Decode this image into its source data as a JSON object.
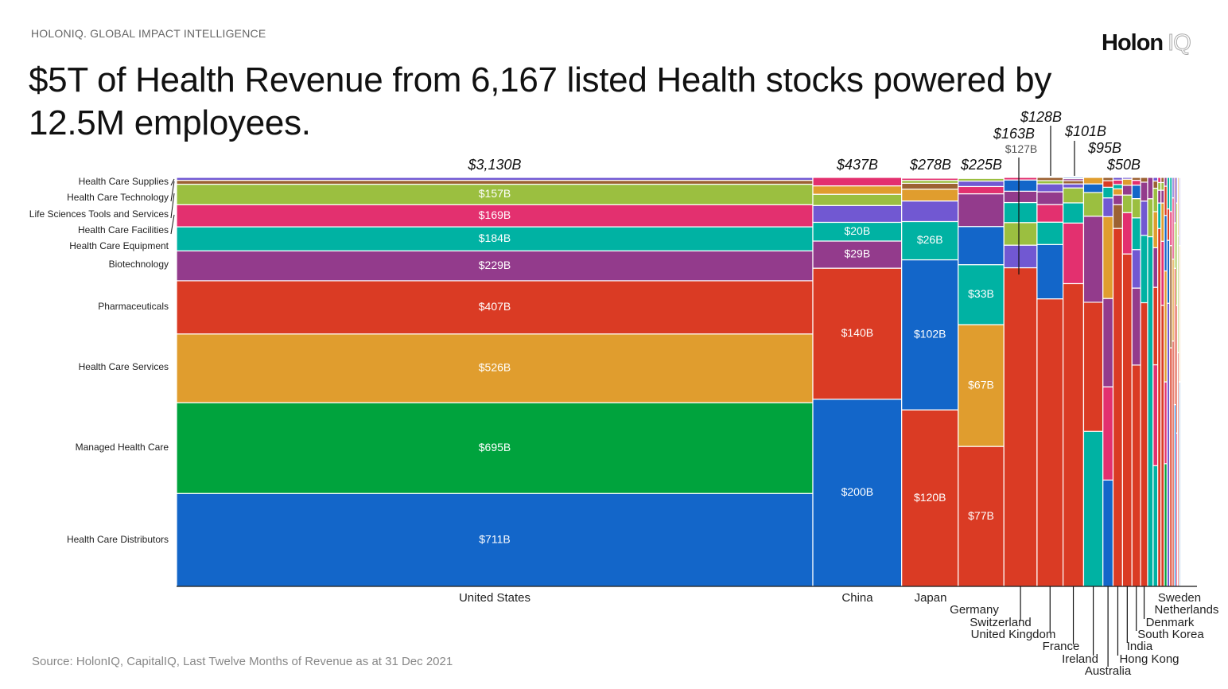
{
  "header": {
    "kicker": "HOLONIQ. GLOBAL IMPACT INTELLIGENCE",
    "title": "$5T of Health Revenue from 6,167 listed Health stocks powered by 12.5M employees.",
    "logo": {
      "main": "Holon",
      "accent": "IQ"
    }
  },
  "footer": {
    "source": "Source: HolonIQ, CapitalIQ, Last Twelve Months of Revenue as at 31 Dec 2021"
  },
  "chart_data": {
    "type": "marimekko",
    "units": "USD billions",
    "sectors": [
      {
        "key": "supplies",
        "name": "Health Care Supplies",
        "color": "#7158d2"
      },
      {
        "key": "tech",
        "name": "Health Care Technology",
        "color": "#9c6233"
      },
      {
        "key": "lifesci",
        "name": "Life Sciences Tools and Services",
        "color": "#9bbf40"
      },
      {
        "key": "facilities",
        "name": "Health Care Facilities",
        "color": "#e3306f"
      },
      {
        "key": "equipment",
        "name": "Health Care Equipment",
        "color": "#00b2a3"
      },
      {
        "key": "biotech",
        "name": "Biotechnology",
        "color": "#933b8c"
      },
      {
        "key": "pharma",
        "name": "Pharmaceuticals",
        "color": "#da3b24"
      },
      {
        "key": "services",
        "name": "Health Care Services",
        "color": "#e09d2e"
      },
      {
        "key": "managed",
        "name": "Managed Health Care",
        "color": "#00a33d"
      },
      {
        "key": "distributors",
        "name": "Health Care Distributors",
        "color": "#1366c9"
      }
    ],
    "columns": [
      {
        "country": "United States",
        "total": 3130,
        "total_label": "$3,130B",
        "segments": [
          {
            "s": "distributors",
            "v": 711,
            "label": "$711B"
          },
          {
            "s": "managed",
            "v": 695,
            "label": "$695B"
          },
          {
            "s": "services",
            "v": 526,
            "label": "$526B"
          },
          {
            "s": "pharma",
            "v": 407,
            "label": "$407B"
          },
          {
            "s": "biotech",
            "v": 229,
            "label": "$229B"
          },
          {
            "s": "equipment",
            "v": 184,
            "label": "$184B"
          },
          {
            "s": "facilities",
            "v": 169,
            "label": "$169B"
          },
          {
            "s": "lifesci",
            "v": 157,
            "label": "$157B"
          },
          {
            "s": "tech",
            "v": 30
          },
          {
            "s": "supplies",
            "v": 22
          }
        ]
      },
      {
        "country": "China",
        "total": 437,
        "total_label": "$437B",
        "segments": [
          {
            "s": "distributors",
            "v": 200,
            "label": "$200B"
          },
          {
            "s": "pharma",
            "v": 140,
            "label": "$140B"
          },
          {
            "s": "biotech",
            "v": 29,
            "label": "$29B"
          },
          {
            "s": "equipment",
            "v": 20,
            "label": "$20B"
          },
          {
            "s": "supplies",
            "v": 18
          },
          {
            "s": "lifesci",
            "v": 12
          },
          {
            "s": "services",
            "v": 9
          },
          {
            "s": "facilities",
            "v": 9
          }
        ]
      },
      {
        "country": "Japan",
        "total": 278,
        "total_label": "$278B",
        "segments": [
          {
            "s": "pharma",
            "v": 120,
            "label": "$120B"
          },
          {
            "s": "distributors",
            "v": 102,
            "label": "$102B"
          },
          {
            "s": "equipment",
            "v": 26,
            "label": "$26B"
          },
          {
            "s": "supplies",
            "v": 14
          },
          {
            "s": "services",
            "v": 8
          },
          {
            "s": "tech",
            "v": 4
          },
          {
            "s": "lifesci",
            "v": 2
          },
          {
            "s": "facilities",
            "v": 1.5
          },
          {
            "s": "biotech",
            "v": 0.5
          }
        ]
      },
      {
        "country": "Germany",
        "total": 225,
        "total_label": "$225B",
        "segments": [
          {
            "s": "pharma",
            "v": 77,
            "label": "$77B"
          },
          {
            "s": "services",
            "v": 67,
            "label": "$67B"
          },
          {
            "s": "equipment",
            "v": 33,
            "label": "$33B"
          },
          {
            "s": "distributors",
            "v": 21
          },
          {
            "s": "biotech",
            "v": 18
          },
          {
            "s": "facilities",
            "v": 4
          },
          {
            "s": "supplies",
            "v": 3
          },
          {
            "s": "lifesci",
            "v": 1.5
          },
          {
            "s": "tech",
            "v": 0.5
          }
        ]
      },
      {
        "country": "Switzerland",
        "total": 163,
        "total_label": "$163B",
        "callout_label": "$127B",
        "segments": [
          {
            "s": "pharma",
            "v": 127
          },
          {
            "s": "supplies",
            "v": 9
          },
          {
            "s": "lifesci",
            "v": 9
          },
          {
            "s": "equipment",
            "v": 8
          },
          {
            "s": "biotech",
            "v": 4.5
          },
          {
            "s": "distributors",
            "v": 4.5
          },
          {
            "s": "facilities",
            "v": 1
          }
        ]
      },
      {
        "country": "United Kingdom",
        "total": 128,
        "total_label": "$128B",
        "segments": [
          {
            "s": "pharma",
            "v": 90
          },
          {
            "s": "distributors",
            "v": 17
          },
          {
            "s": "equipment",
            "v": 7
          },
          {
            "s": "facilities",
            "v": 5.5
          },
          {
            "s": "biotech",
            "v": 4
          },
          {
            "s": "supplies",
            "v": 2.5
          },
          {
            "s": "lifesci",
            "v": 1
          },
          {
            "s": "tech",
            "v": 1
          }
        ]
      },
      {
        "country": "France",
        "total": 101,
        "total_label": "$101B",
        "segments": [
          {
            "s": "pharma",
            "v": 75
          },
          {
            "s": "facilities",
            "v": 15
          },
          {
            "s": "equipment",
            "v": 5
          },
          {
            "s": "lifesci",
            "v": 3.7
          },
          {
            "s": "supplies",
            "v": 1
          },
          {
            "s": "tech",
            "v": 0.8
          },
          {
            "s": "biotech",
            "v": 0.5
          },
          {
            "s": "distributors",
            "v": 0.3
          }
        ]
      },
      {
        "country": "Ireland",
        "total": 95,
        "total_label": "$95B",
        "segments": [
          {
            "s": "equipment",
            "v": 36
          },
          {
            "s": "pharma",
            "v": 30
          },
          {
            "s": "biotech",
            "v": 20
          },
          {
            "s": "lifesci",
            "v": 5.5
          },
          {
            "s": "distributors",
            "v": 2
          },
          {
            "s": "services",
            "v": 1.5
          }
        ]
      },
      {
        "country": "Australia",
        "total": 50,
        "total_label": "$50B",
        "segments": [
          {
            "s": "distributors",
            "v": 13
          },
          {
            "s": "facilities",
            "v": 11.4
          },
          {
            "s": "biotech",
            "v": 10.8
          },
          {
            "s": "services",
            "v": 10
          },
          {
            "s": "supplies",
            "v": 2.3
          },
          {
            "s": "equipment",
            "v": 1.3
          },
          {
            "s": "pharma",
            "v": 0.8
          },
          {
            "s": "tech",
            "v": 0.4
          }
        ]
      },
      {
        "country": "Hong Kong",
        "total": 46.5,
        "segments": [
          {
            "s": "pharma",
            "v": 40.7
          },
          {
            "s": "tech",
            "v": 2.7
          },
          {
            "s": "biotech",
            "v": 1.1
          },
          {
            "s": "services",
            "v": 0.7
          },
          {
            "s": "equipment",
            "v": 0.5
          },
          {
            "s": "facilities",
            "v": 0.5
          },
          {
            "s": "supplies",
            "v": 0.3
          }
        ]
      },
      {
        "country": "India",
        "total": 46.5,
        "segments": [
          {
            "s": "pharma",
            "v": 37.8
          },
          {
            "s": "facilities",
            "v": 4.7
          },
          {
            "s": "lifesci",
            "v": 2
          },
          {
            "s": "biotech",
            "v": 1.1
          },
          {
            "s": "services",
            "v": 0.7
          },
          {
            "s": "supplies",
            "v": 0.2
          }
        ]
      },
      {
        "country": "South Korea",
        "total": 42.5,
        "segments": [
          {
            "s": "pharma",
            "v": 23
          },
          {
            "s": "biotech",
            "v": 8
          },
          {
            "s": "supplies",
            "v": 4
          },
          {
            "s": "equipment",
            "v": 3.3
          },
          {
            "s": "lifesci",
            "v": 2
          },
          {
            "s": "distributors",
            "v": 1.4
          },
          {
            "s": "facilities",
            "v": 0.5
          },
          {
            "s": "tech",
            "v": 0.3
          }
        ]
      },
      {
        "country": "Denmark",
        "total": 34.6,
        "segments": [
          {
            "s": "pharma",
            "v": 24
          },
          {
            "s": "equipment",
            "v": 5.7
          },
          {
            "s": "supplies",
            "v": 2.9
          },
          {
            "s": "biotech",
            "v": 1.6
          },
          {
            "s": "tech",
            "v": 0.4
          }
        ]
      },
      {
        "country": "Netherlands",
        "total": 26.9,
        "segments": [
          {
            "s": "equipment",
            "v": 23
          },
          {
            "s": "lifesci",
            "v": 2.5
          },
          {
            "s": "biotech",
            "v": 1.4
          }
        ]
      },
      {
        "country": "Sweden",
        "total": 22.7,
        "segments": [
          {
            "s": "equipment",
            "v": 6.7
          },
          {
            "s": "facilities",
            "v": 5.6
          },
          {
            "s": "pharma",
            "v": 4.3
          },
          {
            "s": "biotech",
            "v": 2.2
          },
          {
            "s": "services",
            "v": 2
          },
          {
            "s": "lifesci",
            "v": 1.3
          },
          {
            "s": "tech",
            "v": 0.4
          },
          {
            "s": "supplies",
            "v": 0.2
          }
        ]
      },
      {
        "total": 16,
        "segments": [
          {
            "s": "pharma",
            "v": 14
          },
          {
            "s": "equipment",
            "v": 1
          },
          {
            "s": "biotech",
            "v": 0.5
          },
          {
            "s": "lifesci",
            "v": 0.3
          },
          {
            "s": "facilities",
            "v": 0.2
          }
        ]
      },
      {
        "total": 16,
        "segments": [
          {
            "s": "pharma",
            "v": 11
          },
          {
            "s": "facilities",
            "v": 2.5
          },
          {
            "s": "services",
            "v": 1.5
          },
          {
            "s": "biotech",
            "v": 0.5
          },
          {
            "s": "lifesci",
            "v": 0.3
          },
          {
            "s": "tech",
            "v": 0.2
          }
        ]
      },
      {
        "total": 14,
        "segments": [
          {
            "s": "managed",
            "v": 4.2
          },
          {
            "s": "facilities",
            "v": 2.8
          },
          {
            "s": "services",
            "v": 3.8
          },
          {
            "s": "distributors",
            "v": 1.9
          },
          {
            "s": "pharma",
            "v": 1
          },
          {
            "s": "biotech",
            "v": 0.3
          }
        ]
      },
      {
        "total": 13,
        "segments": [
          {
            "s": "supplies",
            "v": 9
          },
          {
            "s": "distributors",
            "v": 2
          },
          {
            "s": "pharma",
            "v": 1
          },
          {
            "s": "equipment",
            "v": 1
          }
        ]
      },
      {
        "total": 12,
        "segments": [
          {
            "s": "pharma",
            "v": 7
          },
          {
            "s": "tech",
            "v": 3
          },
          {
            "s": "facilities",
            "v": 1
          },
          {
            "s": "equipment",
            "v": 1
          }
        ]
      },
      {
        "total": 10,
        "segments": [
          {
            "s": "pharma",
            "v": 6
          },
          {
            "s": "services",
            "v": 2
          },
          {
            "s": "facilities",
            "v": 1.5
          },
          {
            "s": "supplies",
            "v": 0.5
          }
        ]
      },
      {
        "total": 9,
        "segments": [
          {
            "s": "distributors",
            "v": 4
          },
          {
            "s": "pharma",
            "v": 3
          },
          {
            "s": "lifesci",
            "v": 1
          },
          {
            "s": "biotech",
            "v": 1
          }
        ]
      },
      {
        "total": 8,
        "segments": [
          {
            "s": "facilities",
            "v": 3
          },
          {
            "s": "pharma",
            "v": 2.5
          },
          {
            "s": "lifesci",
            "v": 2
          },
          {
            "s": "supplies",
            "v": 0.5
          }
        ]
      },
      {
        "total": 7,
        "segments": [
          {
            "s": "pharma",
            "v": 4
          },
          {
            "s": "lifesci",
            "v": 2
          },
          {
            "s": "services",
            "v": 1
          }
        ]
      },
      {
        "total": 6,
        "segments": [
          {
            "s": "distributors",
            "v": 3
          },
          {
            "s": "services",
            "v": 2
          },
          {
            "s": "supplies",
            "v": 1
          }
        ]
      },
      {
        "total": 4,
        "segments": [
          {
            "s": "services",
            "v": 2
          },
          {
            "s": "pharma",
            "v": 2
          }
        ]
      },
      {
        "total": 3,
        "segments": [
          {
            "s": "distributors",
            "v": 3
          }
        ]
      }
    ]
  }
}
